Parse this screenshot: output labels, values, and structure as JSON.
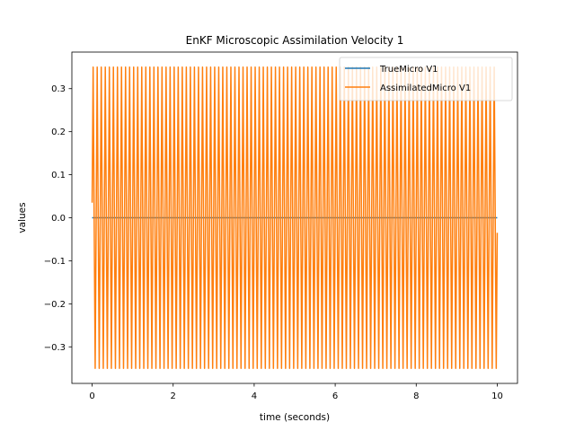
{
  "chart_data": {
    "type": "line",
    "title": "EnKF Microscopic Assimilation Velocity 1",
    "xlabel": "time (seconds)",
    "ylabel": "values",
    "xlim": [
      -0.5,
      10.5
    ],
    "ylim": [
      -0.385,
      0.385
    ],
    "xticks": [
      0,
      2,
      4,
      6,
      8,
      10
    ],
    "xtick_labels": [
      "0",
      "2",
      "4",
      "6",
      "8",
      "10"
    ],
    "yticks": [
      -0.3,
      -0.2,
      -0.1,
      0.0,
      0.1,
      0.2,
      0.3
    ],
    "ytick_labels": [
      "−0.3",
      "−0.2",
      "−0.1",
      "0.0",
      "0.1",
      "0.2",
      "0.3"
    ],
    "grid": false,
    "legend_position": "top-right",
    "series": [
      {
        "name": "TrueMicro V1",
        "color": "#1f77b4",
        "form": "constant",
        "x_range": [
          0,
          10
        ],
        "value": 0.0
      },
      {
        "name": "AssimilatedMicro V1",
        "color": "#ff7f0e",
        "form": "oscillation",
        "x_range": [
          0,
          10
        ],
        "amplitude": 0.35,
        "cycles": 100,
        "start_value": 0.035,
        "end_value": -0.035
      }
    ]
  }
}
